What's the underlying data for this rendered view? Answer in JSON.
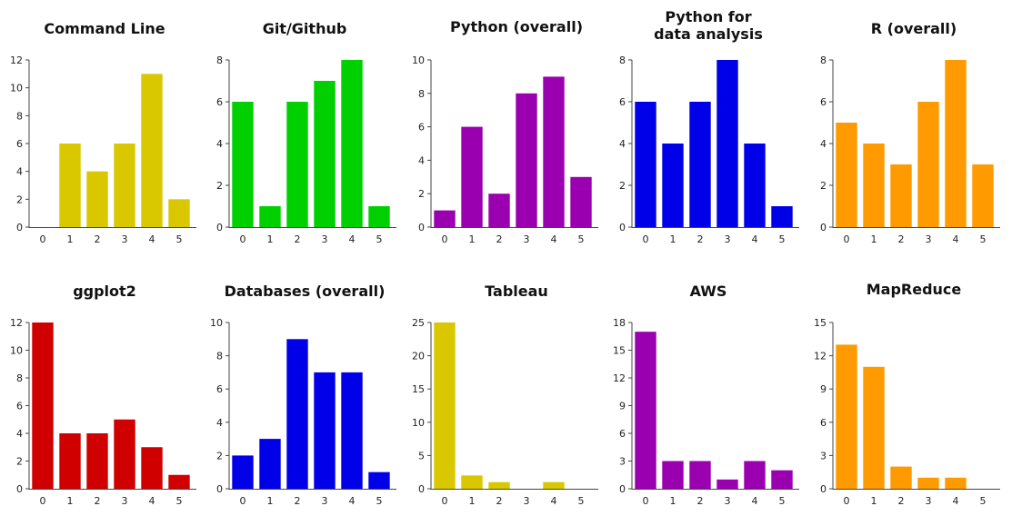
{
  "chart_data": [
    {
      "type": "bar",
      "title": [
        "Command Line"
      ],
      "categories": [
        "0",
        "1",
        "2",
        "3",
        "4",
        "5"
      ],
      "values": [
        0,
        6,
        4,
        6,
        11,
        2
      ],
      "ylim": [
        0,
        12
      ],
      "yticks": [
        "0",
        "2",
        "4",
        "6",
        "8",
        "10",
        "12"
      ],
      "color": "#D9C800",
      "grid": false
    },
    {
      "type": "bar",
      "title": [
        "Git/Github"
      ],
      "categories": [
        "0",
        "1",
        "2",
        "3",
        "4",
        "5"
      ],
      "values": [
        6,
        1,
        6,
        7,
        8,
        1
      ],
      "ylim": [
        0,
        8
      ],
      "yticks": [
        "0",
        "2",
        "4",
        "6",
        "8"
      ],
      "color": "#00D000",
      "grid": false
    },
    {
      "type": "bar",
      "title": [
        "Python (overall)"
      ],
      "categories": [
        "0",
        "1",
        "2",
        "3",
        "4",
        "5"
      ],
      "values": [
        1,
        6,
        2,
        8,
        9,
        3
      ],
      "ylim": [
        0,
        10
      ],
      "yticks": [
        "0",
        "2",
        "4",
        "6",
        "8",
        "10"
      ],
      "color": "#9B00B0",
      "grid": false
    },
    {
      "type": "bar",
      "title": [
        "Python for",
        "data analysis"
      ],
      "categories": [
        "0",
        "1",
        "2",
        "3",
        "4",
        "5"
      ],
      "values": [
        6,
        4,
        6,
        8,
        4,
        1
      ],
      "ylim": [
        0,
        8
      ],
      "yticks": [
        "0",
        "2",
        "4",
        "6",
        "8"
      ],
      "color": "#0000E8",
      "grid": false
    },
    {
      "type": "bar",
      "title": [
        "R (overall)"
      ],
      "categories": [
        "0",
        "1",
        "2",
        "3",
        "4",
        "5"
      ],
      "values": [
        5,
        4,
        3,
        6,
        8,
        3
      ],
      "ylim": [
        0,
        8
      ],
      "yticks": [
        "0",
        "2",
        "4",
        "6",
        "8"
      ],
      "color": "#FF9A00",
      "grid": false
    },
    {
      "type": "bar",
      "title": [
        "ggplot2"
      ],
      "categories": [
        "0",
        "1",
        "2",
        "3",
        "4",
        "5"
      ],
      "values": [
        12,
        4,
        4,
        5,
        3,
        1
      ],
      "ylim": [
        0,
        12
      ],
      "yticks": [
        "0",
        "2",
        "4",
        "6",
        "8",
        "10",
        "12"
      ],
      "color": "#D00000",
      "grid": false
    },
    {
      "type": "bar",
      "title": [
        "Databases (overall)"
      ],
      "categories": [
        "0",
        "1",
        "2",
        "3",
        "4",
        "5"
      ],
      "values": [
        2,
        3,
        9,
        7,
        7,
        1
      ],
      "ylim": [
        0,
        10
      ],
      "yticks": [
        "0",
        "2",
        "4",
        "6",
        "8",
        "10"
      ],
      "color": "#0000E8",
      "grid": false
    },
    {
      "type": "bar",
      "title": [
        "Tableau"
      ],
      "categories": [
        "0",
        "1",
        "2",
        "3",
        "4",
        "5"
      ],
      "values": [
        25,
        2,
        1,
        0,
        1,
        0
      ],
      "ylim": [
        0,
        25
      ],
      "yticks": [
        "0",
        "5",
        "10",
        "15",
        "20",
        "25"
      ],
      "color": "#D9C800",
      "grid": false
    },
    {
      "type": "bar",
      "title": [
        "AWS"
      ],
      "categories": [
        "0",
        "1",
        "2",
        "3",
        "4",
        "5"
      ],
      "values": [
        17,
        3,
        3,
        1,
        3,
        2
      ],
      "ylim": [
        0,
        18
      ],
      "yticks": [
        "0",
        "3",
        "6",
        "9",
        "12",
        "15",
        "18"
      ],
      "color": "#9B00B0",
      "grid": false
    },
    {
      "type": "bar",
      "title": [
        "MapReduce"
      ],
      "categories": [
        "0",
        "1",
        "2",
        "3",
        "4",
        "5"
      ],
      "values": [
        13,
        11,
        2,
        1,
        1,
        0
      ],
      "ylim": [
        0,
        15
      ],
      "yticks": [
        "0",
        "3",
        "6",
        "9",
        "12",
        "15"
      ],
      "color": "#FF9A00",
      "grid": false
    }
  ]
}
